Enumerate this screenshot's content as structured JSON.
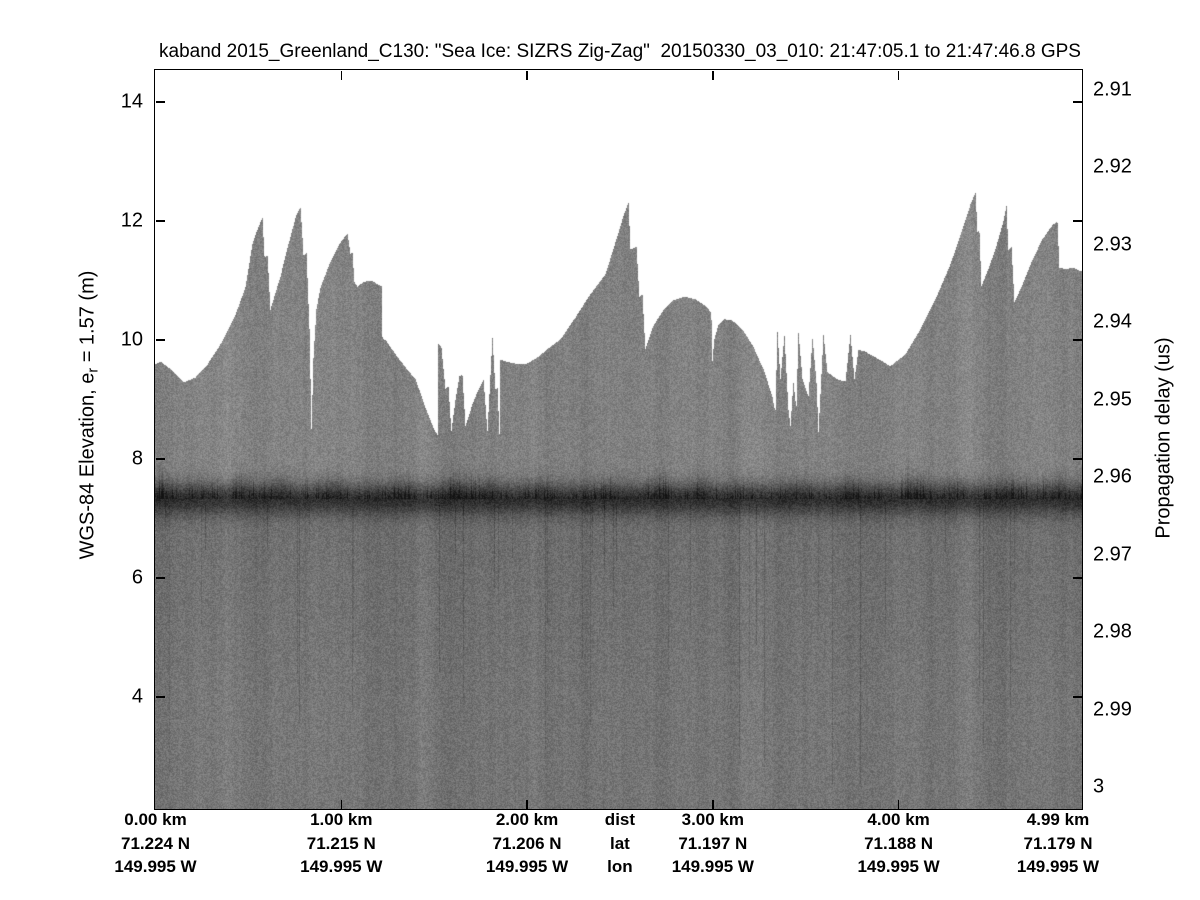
{
  "title": "kaband 2015_Greenland_C130: \"Sea Ice: SIZRS Zig-Zag\"  20150330_03_010: 21:47:05.1 to 21:47:46.8 GPS",
  "left_axis": {
    "label_prefix": "WGS-84 Elevation, e",
    "label_sub": "r",
    "label_suffix": " = 1.57 (m)",
    "tick_labels": [
      "14",
      "12",
      "10",
      "8",
      "6",
      "4"
    ]
  },
  "right_axis": {
    "label": "Propagation delay (us)",
    "tick_labels": [
      "2.91",
      "2.92",
      "2.93",
      "2.94",
      "2.95",
      "2.96",
      "2.97",
      "2.98",
      "2.99",
      "3"
    ]
  },
  "bottom_axis": {
    "header": {
      "dist": "dist",
      "lat": "lat",
      "lon": "lon",
      "km": 2.5
    },
    "columns": [
      {
        "dist": "0.00 km",
        "lat": "71.224 N",
        "lon": "149.995 W",
        "km": 0.0
      },
      {
        "dist": "1.00 km",
        "lat": "71.215 N",
        "lon": "149.995 W",
        "km": 1.0
      },
      {
        "dist": "2.00 km",
        "lat": "71.206 N",
        "lon": "149.995 W",
        "km": 2.0
      },
      {
        "dist": "3.00 km",
        "lat": "71.197 N",
        "lon": "149.995 W",
        "km": 3.0
      },
      {
        "dist": "4.00 km",
        "lat": "71.188 N",
        "lon": "149.995 W",
        "km": 4.0
      },
      {
        "dist": "4.99 km",
        "lat": "71.179 N",
        "lon": "149.995 W",
        "km": 4.99
      }
    ]
  },
  "chart_data": {
    "type": "heatmap",
    "subtype": "radar-echogram",
    "description": "Ka-band radar altimeter echogram over sea ice; grayscale backscatter vs distance and elevation/propagation delay",
    "x_axis": {
      "label_rows": [
        "dist",
        "lat",
        "lon"
      ],
      "range_km": [
        0,
        4.99
      ],
      "tick_km": [
        1,
        2,
        3,
        4
      ]
    },
    "elevation_axis": {
      "ticks_m": [
        14,
        12,
        10,
        8,
        6,
        4
      ],
      "range_m": [
        2.12,
        14.55
      ]
    },
    "delay_axis": {
      "ticks_us": [
        2.91,
        2.92,
        2.93,
        2.94,
        2.95,
        2.96,
        2.97,
        2.98,
        2.99,
        3.0
      ],
      "range_us": [
        2.906,
        3.003
      ]
    },
    "grid": false,
    "colors": {
      "sky": "#ffffff",
      "speckle_mean": "#828282",
      "surface_return_core": "#303030",
      "below_band": "#6e6e6e",
      "deep_field": "#767676",
      "axis": "#000000"
    },
    "surface_return_band": {
      "center_elevation_m": 7.33,
      "fuzz_bumps_km_amp": [
        [
          0.05,
          0.6
        ],
        [
          0.23,
          0.5
        ],
        [
          0.45,
          0.7
        ],
        [
          0.66,
          0.8
        ],
        [
          0.95,
          0.7
        ],
        [
          1.32,
          0.5
        ],
        [
          1.62,
          0.8
        ],
        [
          1.8,
          0.6
        ],
        [
          2.06,
          0.5
        ],
        [
          2.45,
          0.4
        ],
        [
          2.71,
          0.6
        ],
        [
          2.93,
          0.7
        ],
        [
          3.2,
          0.4
        ],
        [
          3.45,
          0.5
        ],
        [
          3.74,
          0.6
        ],
        [
          4.09,
          0.9
        ],
        [
          4.33,
          0.5
        ],
        [
          4.6,
          0.5
        ],
        [
          4.85,
          0.6
        ]
      ]
    },
    "surface_profile_km_m": [
      [
        0.0,
        9.58
      ],
      [
        0.027,
        9.63
      ],
      [
        0.081,
        9.5
      ],
      [
        0.151,
        9.28
      ],
      [
        0.215,
        9.36
      ],
      [
        0.28,
        9.58
      ],
      [
        0.361,
        9.97
      ],
      [
        0.431,
        10.42
      ],
      [
        0.484,
        10.87
      ],
      [
        0.522,
        11.6
      ],
      [
        0.544,
        11.81
      ],
      [
        0.576,
        12.05
      ],
      [
        0.587,
        11.38
      ],
      [
        0.603,
        11.41
      ],
      [
        0.619,
        10.5
      ],
      [
        0.673,
        11.06
      ],
      [
        0.716,
        11.6
      ],
      [
        0.759,
        12.1
      ],
      [
        0.781,
        12.22
      ],
      [
        0.797,
        11.41
      ],
      [
        0.813,
        11.45
      ],
      [
        0.829,
        10.17
      ],
      [
        0.84,
        8.45
      ],
      [
        0.85,
        9.66
      ],
      [
        0.866,
        10.5
      ],
      [
        0.888,
        10.87
      ],
      [
        0.942,
        11.31
      ],
      [
        0.996,
        11.63
      ],
      [
        1.034,
        11.78
      ],
      [
        1.05,
        11.43
      ],
      [
        1.06,
        11.48
      ],
      [
        1.071,
        10.96
      ],
      [
        1.087,
        10.89
      ],
      [
        1.125,
        10.97
      ],
      [
        1.163,
        10.99
      ],
      [
        1.2,
        10.92
      ],
      [
        1.217,
        10.89
      ],
      [
        1.222,
        10.03
      ],
      [
        1.243,
        9.97
      ],
      [
        1.292,
        9.75
      ],
      [
        1.346,
        9.53
      ],
      [
        1.4,
        9.33
      ],
      [
        1.453,
        8.86
      ],
      [
        1.496,
        8.52
      ],
      [
        1.518,
        8.39
      ],
      [
        1.523,
        9.92
      ],
      [
        1.539,
        9.87
      ],
      [
        1.561,
        9.16
      ],
      [
        1.577,
        9.21
      ],
      [
        1.593,
        8.45
      ],
      [
        1.615,
        8.99
      ],
      [
        1.636,
        9.38
      ],
      [
        1.652,
        9.41
      ],
      [
        1.669,
        8.54
      ],
      [
        1.706,
        8.91
      ],
      [
        1.739,
        9.16
      ],
      [
        1.766,
        9.33
      ],
      [
        1.787,
        8.45
      ],
      [
        1.814,
        10.03
      ],
      [
        1.83,
        9.16
      ],
      [
        1.841,
        9.19
      ],
      [
        1.852,
        8.4
      ],
      [
        1.857,
        9.66
      ],
      [
        1.922,
        9.6
      ],
      [
        1.992,
        9.58
      ],
      [
        2.062,
        9.71
      ],
      [
        2.115,
        9.85
      ],
      [
        2.18,
        10.0
      ],
      [
        2.261,
        10.37
      ],
      [
        2.341,
        10.76
      ],
      [
        2.422,
        11.09
      ],
      [
        2.476,
        11.63
      ],
      [
        2.519,
        12.07
      ],
      [
        2.546,
        12.3
      ],
      [
        2.557,
        11.51
      ],
      [
        2.589,
        11.56
      ],
      [
        2.605,
        10.72
      ],
      [
        2.621,
        10.77
      ],
      [
        2.637,
        9.83
      ],
      [
        2.675,
        10.2
      ],
      [
        2.729,
        10.47
      ],
      [
        2.788,
        10.66
      ],
      [
        2.847,
        10.72
      ],
      [
        2.911,
        10.67
      ],
      [
        2.965,
        10.55
      ],
      [
        2.992,
        10.45
      ],
      [
        2.998,
        9.63
      ],
      [
        3.008,
        10.0
      ],
      [
        3.03,
        10.24
      ],
      [
        3.062,
        10.34
      ],
      [
        3.105,
        10.32
      ],
      [
        3.159,
        10.17
      ],
      [
        3.218,
        9.88
      ],
      [
        3.278,
        9.46
      ],
      [
        3.321,
        9.03
      ],
      [
        3.337,
        8.77
      ],
      [
        3.348,
        10.13
      ],
      [
        3.364,
        9.33
      ],
      [
        3.386,
        10.07
      ],
      [
        3.407,
        8.82
      ],
      [
        3.418,
        8.54
      ],
      [
        3.434,
        9.28
      ],
      [
        3.45,
        8.82
      ],
      [
        3.461,
        10.12
      ],
      [
        3.483,
        9.33
      ],
      [
        3.515,
        9.04
      ],
      [
        3.537,
        10.03
      ],
      [
        3.558,
        9.28
      ],
      [
        3.569,
        8.44
      ],
      [
        3.596,
        10.08
      ],
      [
        3.617,
        9.45
      ],
      [
        3.671,
        9.33
      ],
      [
        3.714,
        9.29
      ],
      [
        3.741,
        10.08
      ],
      [
        3.763,
        9.33
      ],
      [
        3.784,
        9.83
      ],
      [
        3.816,
        9.8
      ],
      [
        3.859,
        9.73
      ],
      [
        3.903,
        9.65
      ],
      [
        3.956,
        9.55
      ],
      [
        4.037,
        9.75
      ],
      [
        4.118,
        10.17
      ],
      [
        4.198,
        10.67
      ],
      [
        4.279,
        11.26
      ],
      [
        4.344,
        11.85
      ],
      [
        4.387,
        12.27
      ],
      [
        4.414,
        12.47
      ],
      [
        4.425,
        11.8
      ],
      [
        4.435,
        11.83
      ],
      [
        4.446,
        10.89
      ],
      [
        4.478,
        11.14
      ],
      [
        4.521,
        11.51
      ],
      [
        4.564,
        11.98
      ],
      [
        4.581,
        12.24
      ],
      [
        4.591,
        11.51
      ],
      [
        4.608,
        11.56
      ],
      [
        4.624,
        10.62
      ],
      [
        4.667,
        10.92
      ],
      [
        4.721,
        11.34
      ],
      [
        4.774,
        11.68
      ],
      [
        4.828,
        11.92
      ],
      [
        4.855,
        11.98
      ],
      [
        4.866,
        11.21
      ],
      [
        4.899,
        11.18
      ],
      [
        4.936,
        11.21
      ],
      [
        4.969,
        11.16
      ],
      [
        4.99,
        11.14
      ]
    ]
  }
}
